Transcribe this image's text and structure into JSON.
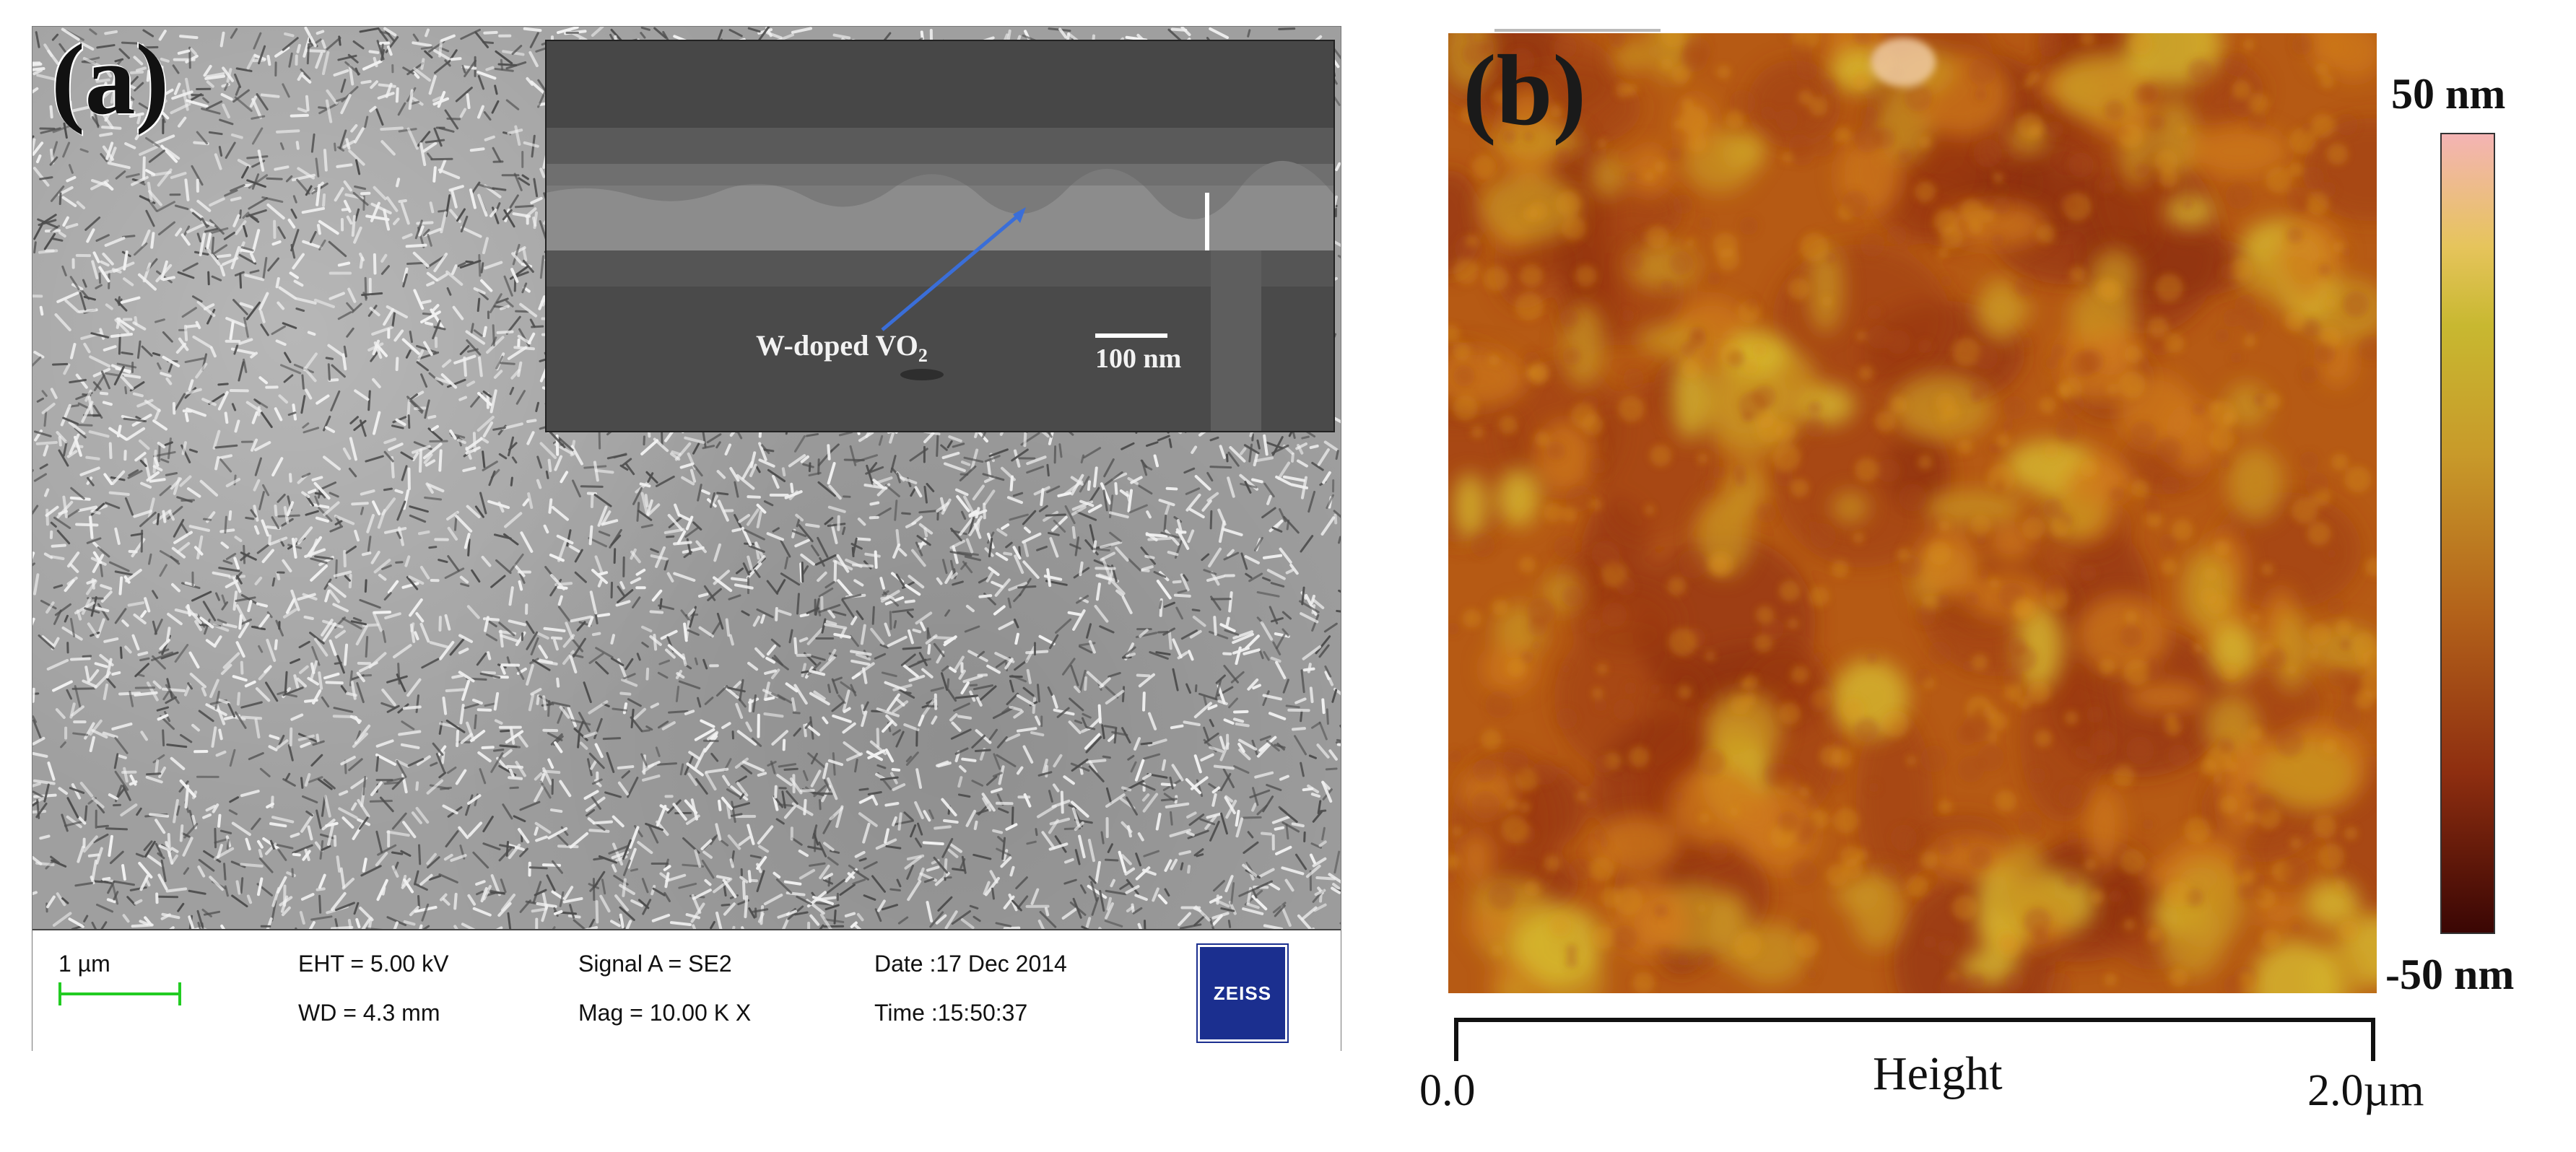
{
  "panel_a": {
    "label": "(a)",
    "inset": {
      "annotation_main": "W-doped VO",
      "annotation_sub": "2",
      "scale_label": "100 nm"
    },
    "info_bar": {
      "scale": "1 µm",
      "eht": "EHT =  5.00 kV",
      "wd": "WD =  4.3 mm",
      "signal": "Signal A = SE2",
      "mag": "Mag =    10.00 K X",
      "date": "Date :17 Dec 2014",
      "time": "Time :15:50:37",
      "logo": "ZEISS"
    }
  },
  "panel_b": {
    "label": "(b)",
    "colorbar": {
      "max_label": "50 nm",
      "min_label": "-50 nm",
      "colors": [
        "#f4b4b4",
        "#c8b830",
        "#b3621a",
        "#3a0604"
      ]
    },
    "axis": {
      "start": "0.0",
      "end": "2.0µm",
      "title": "Height"
    }
  }
}
